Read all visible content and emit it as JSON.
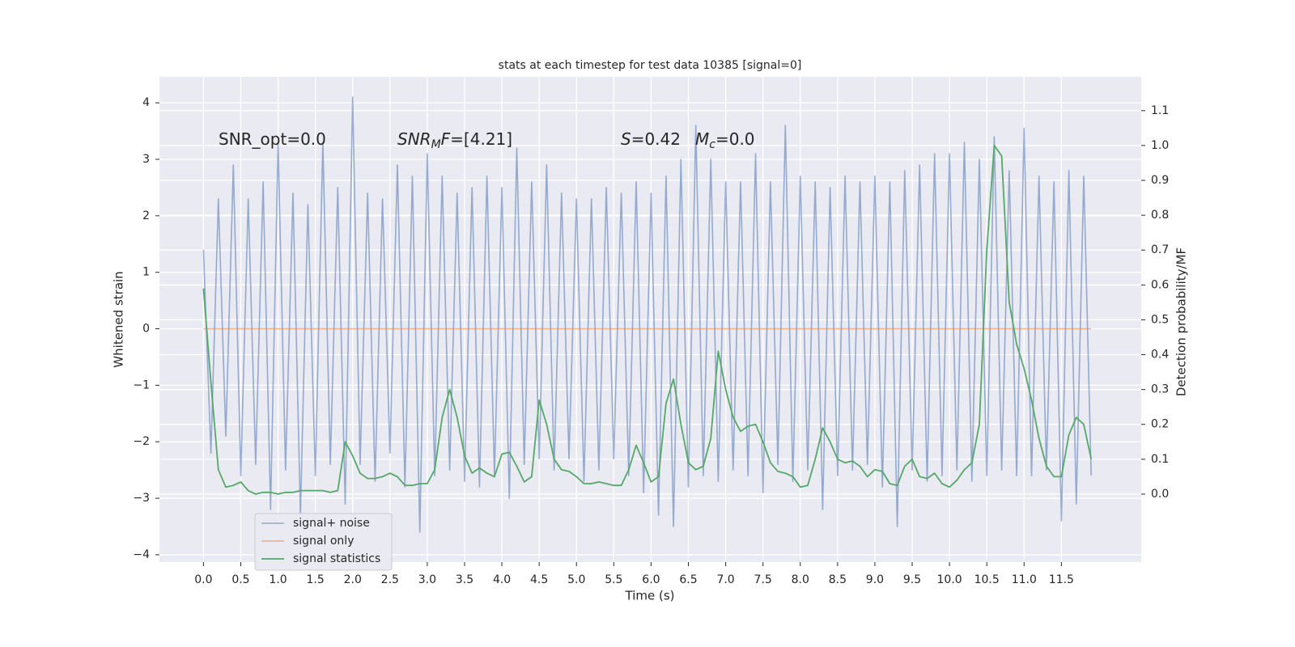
{
  "chart_data": {
    "type": "line",
    "title": "stats at each timestep for test data 10385 [signal=0]",
    "xlabel": "Time (s)",
    "ylabel": "Whitened strain",
    "y2label": "Detection probability/MF",
    "annotations": [
      [
        "SNR_opt=0.0"
      ],
      [
        "SNR",
        "M",
        "F",
        "=[4.21]"
      ],
      [
        "S",
        "=0.42"
      ],
      [
        "M",
        "c",
        "=0.0"
      ]
    ],
    "grid": true,
    "legend": "lower left",
    "xlim": [
      -0.59,
      12.57
    ],
    "ylim": [
      -4.13,
      4.46
    ],
    "y2lim": [
      -0.195,
      1.197
    ],
    "xticks": [
      {
        "value": 0,
        "label": "0.0"
      },
      {
        "value": 0.5,
        "label": "0.5"
      },
      {
        "value": 1,
        "label": "1.0"
      },
      {
        "value": 1.5,
        "label": "1.5"
      },
      {
        "value": 2,
        "label": "2.0"
      },
      {
        "value": 2.5,
        "label": "2.5"
      },
      {
        "value": 3,
        "label": "3.0"
      },
      {
        "value": 3.5,
        "label": "3.5"
      },
      {
        "value": 4,
        "label": "4.0"
      },
      {
        "value": 4.5,
        "label": "4.5"
      },
      {
        "value": 5,
        "label": "5.0"
      },
      {
        "value": 5.5,
        "label": "5.5"
      },
      {
        "value": 6,
        "label": "6.0"
      },
      {
        "value": 6.5,
        "label": "6.5"
      },
      {
        "value": 7,
        "label": "7.0"
      },
      {
        "value": 7.5,
        "label": "7.5"
      },
      {
        "value": 8,
        "label": "8.0"
      },
      {
        "value": 8.5,
        "label": "8.5"
      },
      {
        "value": 9,
        "label": "9.0"
      },
      {
        "value": 9.5,
        "label": "9.5"
      },
      {
        "value": 10,
        "label": "10.0"
      },
      {
        "value": 10.5,
        "label": "10.5"
      },
      {
        "value": 11,
        "label": "11.0"
      },
      {
        "value": 11.5,
        "label": "11.5"
      }
    ],
    "yticks": [
      {
        "value": -4,
        "label": "−4"
      },
      {
        "value": -3,
        "label": "−3"
      },
      {
        "value": -2,
        "label": "−2"
      },
      {
        "value": -1,
        "label": "−1"
      },
      0,
      1,
      2,
      3,
      4
    ],
    "y2ticks": [
      {
        "value": 0,
        "label": "0.0"
      },
      0.1,
      0.2,
      0.3,
      0.4,
      0.5,
      0.6,
      0.7,
      0.8,
      0.9,
      {
        "value": 1,
        "label": "1.0"
      },
      1.1
    ],
    "x": [
      0.0,
      0.1,
      0.2,
      0.3,
      0.4,
      0.5,
      0.6,
      0.7,
      0.8,
      0.9,
      1.0,
      1.1,
      1.2,
      1.3,
      1.4,
      1.5,
      1.6,
      1.7,
      1.8,
      1.9,
      2.0,
      2.1,
      2.2,
      2.3,
      2.4,
      2.5,
      2.6,
      2.7,
      2.8,
      2.9,
      3.0,
      3.1,
      3.2,
      3.3,
      3.4,
      3.5,
      3.6,
      3.7,
      3.8,
      3.9,
      4.0,
      4.1,
      4.2,
      4.3,
      4.4,
      4.5,
      4.6,
      4.7,
      4.8,
      4.9,
      5.0,
      5.1,
      5.2,
      5.3,
      5.4,
      5.5,
      5.6,
      5.7,
      5.8,
      5.9,
      6.0,
      6.1,
      6.2,
      6.3,
      6.4,
      6.5,
      6.6,
      6.7,
      6.8,
      6.9,
      7.0,
      7.1,
      7.2,
      7.3,
      7.4,
      7.5,
      7.6,
      7.7,
      7.8,
      7.9,
      8.0,
      8.1,
      8.2,
      8.3,
      8.4,
      8.5,
      8.6,
      8.7,
      8.8,
      8.9,
      9.0,
      9.1,
      9.2,
      9.3,
      9.4,
      9.5,
      9.6,
      9.7,
      9.8,
      9.9,
      10.0,
      10.1,
      10.2,
      10.3,
      10.4,
      10.5,
      10.6,
      10.7,
      10.8,
      10.9,
      11.0,
      11.1,
      11.2,
      11.3,
      11.4,
      11.5,
      11.6,
      11.7,
      11.8,
      11.9
    ],
    "series": [
      {
        "name": "signal+ noise",
        "color": "#4c72b0",
        "values": [
          1.4,
          -2.2,
          2.3,
          -1.9,
          2.9,
          -2.6,
          2.3,
          -2.4,
          2.6,
          -3.2,
          3.3,
          -2.5,
          2.4,
          -3.3,
          2.2,
          -2.6,
          3.3,
          -2.4,
          2.5,
          -3.1,
          4.1,
          -2.4,
          2.4,
          -2.7,
          2.3,
          -2.2,
          2.9,
          -2.8,
          2.7,
          -3.6,
          3.1,
          -2.6,
          2.7,
          -2.5,
          2.4,
          -2.7,
          2.5,
          -2.8,
          2.7,
          -2.6,
          2.5,
          -3.0,
          3.2,
          -2.4,
          2.6,
          -2.3,
          2.9,
          -2.5,
          2.4,
          -2.3,
          2.3,
          -2.7,
          2.3,
          -2.5,
          2.5,
          -2.3,
          2.4,
          -2.6,
          2.6,
          -2.9,
          2.4,
          -3.3,
          2.7,
          -3.5,
          3.0,
          -2.8,
          3.6,
          -2.6,
          3.0,
          -2.7,
          2.6,
          -2.5,
          2.6,
          -2.6,
          3.1,
          -2.9,
          2.6,
          -2.4,
          3.6,
          -2.7,
          2.7,
          -2.5,
          2.6,
          -3.2,
          2.5,
          -2.6,
          2.7,
          -2.5,
          2.6,
          -2.4,
          2.7,
          -2.8,
          2.6,
          -3.5,
          2.8,
          -2.5,
          2.9,
          -2.7,
          3.1,
          -2.6,
          3.1,
          -2.5,
          3.3,
          -2.7,
          3.0,
          -2.6,
          3.4,
          -2.5,
          2.8,
          -2.6,
          3.55,
          -2.6,
          2.7,
          -2.5,
          2.6,
          -3.4,
          2.8,
          -3.1,
          2.7,
          -2.6
        ]
      },
      {
        "name": "signal only",
        "color": "#dd8452",
        "values": [
          0,
          0,
          0,
          0,
          0,
          0,
          0,
          0,
          0,
          0,
          0,
          0,
          0,
          0,
          0,
          0,
          0,
          0,
          0,
          0,
          0,
          0,
          0,
          0,
          0,
          0,
          0,
          0,
          0,
          0,
          0,
          0,
          0,
          0,
          0,
          0,
          0,
          0,
          0,
          0,
          0,
          0,
          0,
          0,
          0,
          0,
          0,
          0,
          0,
          0,
          0,
          0,
          0,
          0,
          0,
          0,
          0,
          0,
          0,
          0,
          0,
          0,
          0,
          0,
          0,
          0,
          0,
          0,
          0,
          0,
          0,
          0,
          0,
          0,
          0,
          0,
          0,
          0,
          0,
          0,
          0,
          0,
          0,
          0,
          0,
          0,
          0,
          0,
          0,
          0,
          0,
          0,
          0,
          0,
          0,
          0,
          0,
          0,
          0,
          0,
          0,
          0,
          0,
          0,
          0,
          0,
          0,
          0,
          0,
          0,
          0,
          0,
          0,
          0,
          0,
          0,
          0,
          0,
          0,
          0
        ]
      },
      {
        "name": "signal statistics",
        "color": "#55a868",
        "axis": "y2",
        "values": [
          0.59,
          0.32,
          0.07,
          0.02,
          0.025,
          0.035,
          0.01,
          0.0,
          0.005,
          0.005,
          0.0,
          0.005,
          0.005,
          0.01,
          0.01,
          0.01,
          0.01,
          0.005,
          0.01,
          0.15,
          0.11,
          0.06,
          0.045,
          0.045,
          0.05,
          0.06,
          0.05,
          0.025,
          0.025,
          0.03,
          0.03,
          0.07,
          0.22,
          0.3,
          0.22,
          0.11,
          0.06,
          0.075,
          0.06,
          0.05,
          0.115,
          0.12,
          0.08,
          0.035,
          0.05,
          0.27,
          0.2,
          0.1,
          0.07,
          0.065,
          0.05,
          0.03,
          0.03,
          0.035,
          0.03,
          0.025,
          0.025,
          0.07,
          0.14,
          0.09,
          0.035,
          0.05,
          0.26,
          0.33,
          0.2,
          0.09,
          0.07,
          0.08,
          0.16,
          0.41,
          0.3,
          0.22,
          0.18,
          0.195,
          0.2,
          0.15,
          0.09,
          0.065,
          0.06,
          0.05,
          0.02,
          0.025,
          0.1,
          0.19,
          0.15,
          0.1,
          0.09,
          0.095,
          0.08,
          0.05,
          0.07,
          0.065,
          0.03,
          0.025,
          0.08,
          0.1,
          0.05,
          0.045,
          0.06,
          0.03,
          0.02,
          0.04,
          0.07,
          0.09,
          0.2,
          0.7,
          1.0,
          0.97,
          0.55,
          0.43,
          0.36,
          0.27,
          0.16,
          0.08,
          0.05,
          0.05,
          0.17,
          0.22,
          0.2,
          0.1
        ]
      }
    ]
  }
}
